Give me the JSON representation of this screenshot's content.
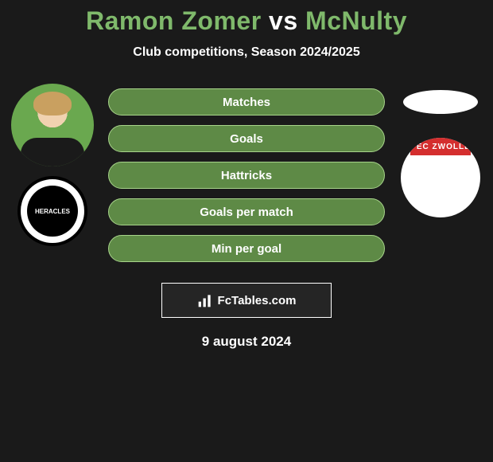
{
  "title_parts": {
    "player1": "Ramon Zomer",
    "vs": " vs ",
    "player2": "McNulty"
  },
  "title_colors": {
    "player1": "#7fb96b",
    "vs": "#ffffff",
    "player2": "#7fb96b"
  },
  "subtitle": "Club competitions, Season 2024/2025",
  "stat_pill": {
    "bg": "#5e8a46",
    "border": "#a7d48a",
    "text_color": "#ffffff"
  },
  "stats": [
    {
      "label": "Matches"
    },
    {
      "label": "Goals"
    },
    {
      "label": "Hattricks"
    },
    {
      "label": "Goals per match"
    },
    {
      "label": "Min per goal"
    }
  ],
  "left_club": {
    "name": "HERACLES",
    "badge_text": "HERACLES"
  },
  "right_club": {
    "name": "PEC ZWOLLE",
    "band_text": "PEC ZWOLLE"
  },
  "footer_brand": "FcTables.com",
  "date_text": "9 august 2024",
  "background_color": "#1a1a1a"
}
